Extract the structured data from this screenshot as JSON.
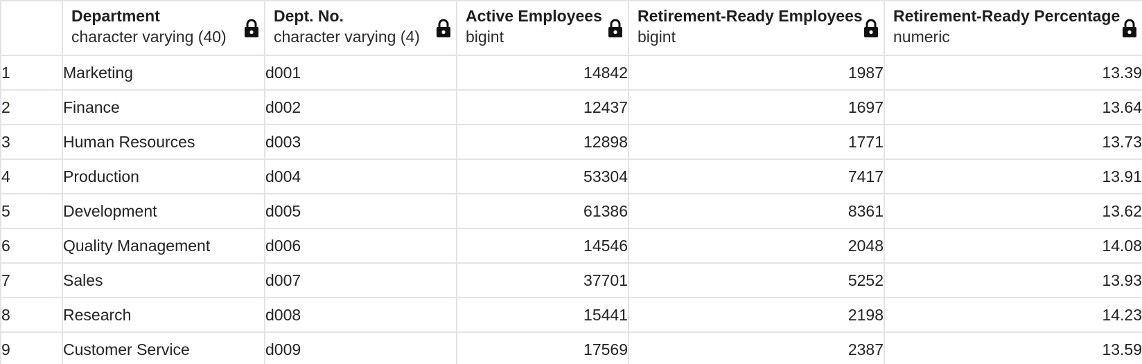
{
  "columns": [
    {
      "name": "Department",
      "type": "character varying (40)",
      "align": "left"
    },
    {
      "name": "Dept. No.",
      "type": "character varying (4)",
      "align": "left"
    },
    {
      "name": "Active Employees",
      "type": "bigint",
      "align": "right"
    },
    {
      "name": "Retirement-Ready Employees",
      "type": "bigint",
      "align": "right"
    },
    {
      "name": "Retirement-Ready Percentage",
      "type": "numeric",
      "align": "right"
    }
  ],
  "header_icon": "lock-icon",
  "rows": [
    {
      "num": "1",
      "cells": [
        "Marketing",
        "d001",
        "14842",
        "1987",
        "13.39"
      ]
    },
    {
      "num": "2",
      "cells": [
        "Finance",
        "d002",
        "12437",
        "1697",
        "13.64"
      ]
    },
    {
      "num": "3",
      "cells": [
        "Human Resources",
        "d003",
        "12898",
        "1771",
        "13.73"
      ]
    },
    {
      "num": "4",
      "cells": [
        "Production",
        "d004",
        "53304",
        "7417",
        "13.91"
      ]
    },
    {
      "num": "5",
      "cells": [
        "Development",
        "d005",
        "61386",
        "8361",
        "13.62"
      ]
    },
    {
      "num": "6",
      "cells": [
        "Quality Management",
        "d006",
        "14546",
        "2048",
        "14.08"
      ]
    },
    {
      "num": "7",
      "cells": [
        "Sales",
        "d007",
        "37701",
        "5252",
        "13.93"
      ]
    },
    {
      "num": "8",
      "cells": [
        "Research",
        "d008",
        "15441",
        "2198",
        "14.23"
      ]
    },
    {
      "num": "9",
      "cells": [
        "Customer Service",
        "d009",
        "17569",
        "2387",
        "13.59"
      ]
    }
  ],
  "colors": {
    "border": "#e2e3e8",
    "text": "#222222",
    "background": "#ffffff"
  }
}
